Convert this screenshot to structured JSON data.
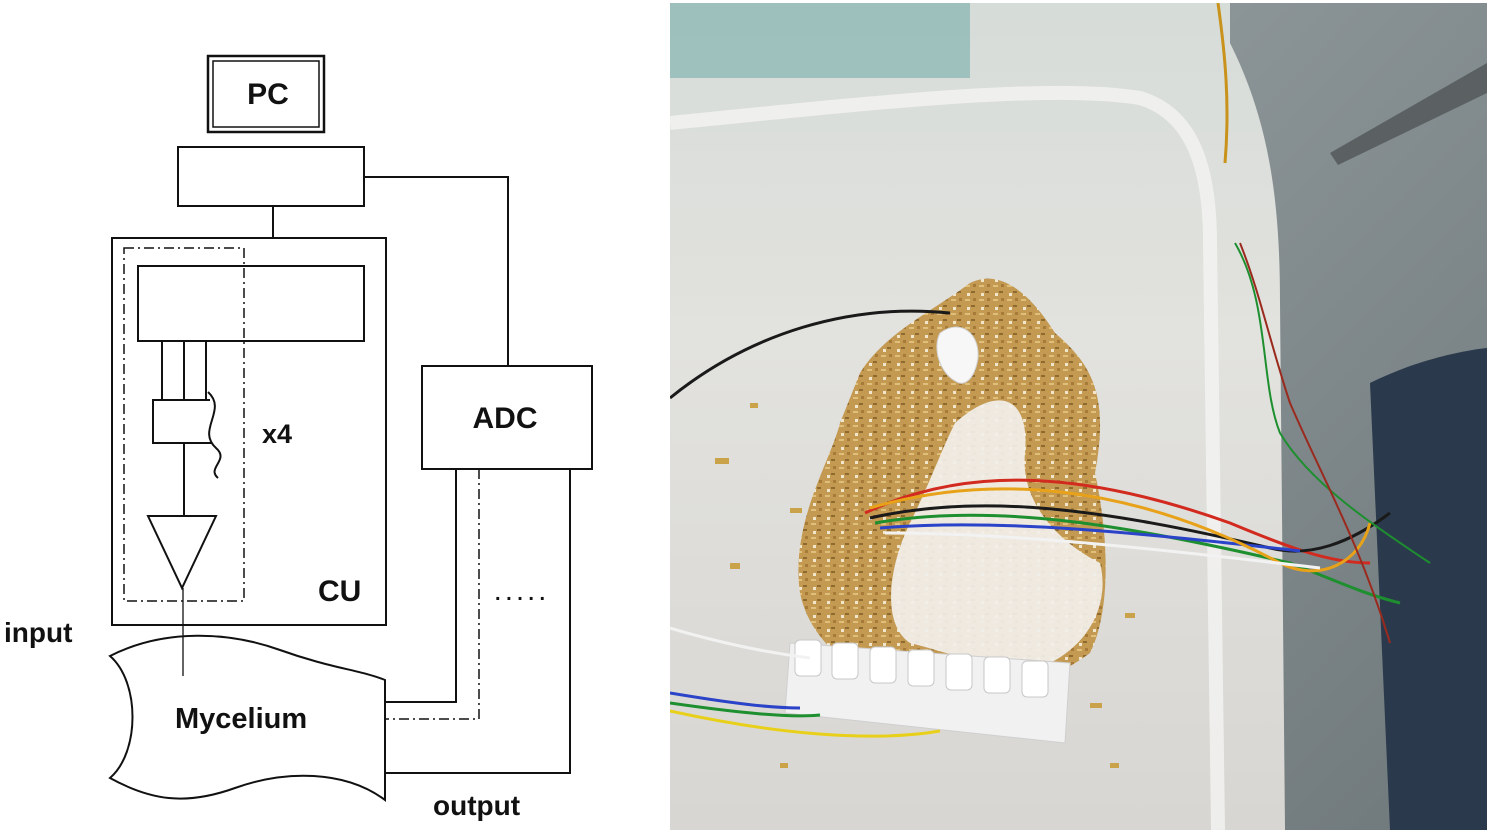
{
  "diagram": {
    "pc_label": "PC",
    "adc_label": "ADC",
    "multiplier_label": "x4",
    "cu_label": "CU",
    "input_label": "input",
    "mycelium_label": "Mycelium",
    "output_label": "output",
    "ellipsis": ". . . . ."
  },
  "colors": {
    "line": "#111111",
    "photo_container": "#dcdcd8",
    "photo_floor": "#8c9496",
    "substrate": "#c49a52",
    "mycelium_white": "#f2f0ec"
  },
  "photo": {
    "wire_colors": [
      "#1a1a1a",
      "#d22a1e",
      "#1d8f2f",
      "#2a43c8",
      "#e8a21a",
      "#f2f2f2"
    ]
  }
}
